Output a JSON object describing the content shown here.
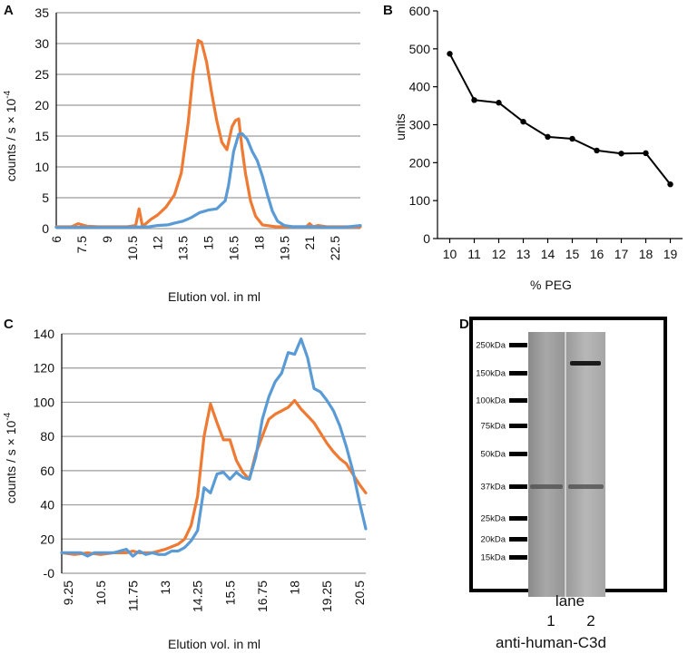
{
  "colors": {
    "orange": "#EE7A33",
    "blue": "#5B9BD5",
    "black": "#000000"
  },
  "chart_data": [
    {
      "panel": "A",
      "type": "line",
      "title": "",
      "xlabel": "Elution vol. in ml",
      "ylabel": "counts / s × 10",
      "ylabel_exponent": "-4",
      "xlim": [
        6,
        24
      ],
      "ylim": [
        0,
        35
      ],
      "x_ticks": [
        6,
        7.5,
        9,
        10.5,
        12,
        13.5,
        15,
        16.5,
        18,
        19.5,
        21,
        22.5
      ],
      "y_ticks": [
        0,
        5,
        10,
        15,
        20,
        25,
        30,
        35
      ],
      "grid": true,
      "series": [
        {
          "name": "orange",
          "color": "#EE7A33",
          "x": [
            6,
            6.9,
            7.3,
            7.8,
            8.5,
            9.5,
            10.2,
            10.7,
            10.9,
            11.1,
            11.3,
            11.6,
            12,
            12.5,
            13,
            13.4,
            13.8,
            14.1,
            14.4,
            14.6,
            14.9,
            15.2,
            15.5,
            15.8,
            16.1,
            16.4,
            16.6,
            16.8,
            17,
            17.2,
            17.5,
            17.8,
            18.2,
            19,
            20,
            20.8,
            21,
            21.2,
            21.5,
            22,
            23,
            24
          ],
          "y": [
            0.3,
            0.3,
            0.8,
            0.4,
            0.3,
            0.3,
            0.3,
            0.5,
            3.2,
            0.4,
            0.8,
            1.5,
            2.2,
            3.5,
            5.5,
            9,
            17,
            25,
            30.5,
            30.2,
            27,
            22,
            17.5,
            14,
            12.8,
            16.5,
            17.5,
            17.8,
            13,
            9,
            4.5,
            2,
            0.6,
            0.3,
            0.3,
            0.3,
            0.8,
            0.3,
            0.5,
            0.3,
            0.3,
            0.3
          ]
        },
        {
          "name": "blue",
          "color": "#5B9BD5",
          "x": [
            6,
            8,
            10,
            11.5,
            12,
            12.6,
            13,
            13.5,
            14,
            14.5,
            15,
            15.5,
            16,
            16.2,
            16.5,
            16.8,
            17,
            17.3,
            17.6,
            17.9,
            18.2,
            18.5,
            18.8,
            19.1,
            19.5,
            20,
            21,
            22,
            23,
            24
          ],
          "y": [
            0.2,
            0.2,
            0.2,
            0.3,
            0.5,
            0.6,
            0.9,
            1.2,
            1.8,
            2.6,
            3.0,
            3.2,
            4.5,
            7,
            12.5,
            15.3,
            15.4,
            14.5,
            12.5,
            11,
            8.5,
            5.5,
            2.8,
            1.2,
            0.5,
            0.3,
            0.3,
            0.2,
            0.2,
            0.5
          ]
        }
      ]
    },
    {
      "panel": "B",
      "type": "line",
      "title": "",
      "xlabel": "% PEG",
      "ylabel": "units",
      "xlim": [
        9.5,
        19.5
      ],
      "ylim": [
        0,
        600
      ],
      "x_ticks": [
        10,
        11,
        12,
        13,
        14,
        15,
        16,
        17,
        18,
        19
      ],
      "y_ticks": [
        0,
        100,
        200,
        300,
        400,
        500,
        600
      ],
      "grid": false,
      "series": [
        {
          "name": "units",
          "color": "#000000",
          "markers": true,
          "x": [
            10,
            11,
            12,
            13,
            14,
            15,
            16,
            17,
            18,
            19
          ],
          "y": [
            487,
            365,
            358,
            308,
            268,
            263,
            232,
            224,
            225,
            143
          ]
        }
      ]
    },
    {
      "panel": "C",
      "type": "line",
      "title": "",
      "xlabel": "Elution vol. in ml",
      "ylabel": "counts / s × 10",
      "ylabel_exponent": "-4",
      "xlim": [
        9,
        20.75
      ],
      "ylim": [
        0,
        140
      ],
      "x_ticks": [
        9.25,
        10.5,
        11.75,
        13,
        14.25,
        15.5,
        16.75,
        18,
        19.25,
        20.5
      ],
      "x_tick_labels": [
        "9.25",
        "10.5",
        "11.75",
        "13",
        "14.25",
        "15.5",
        "16.75",
        "18",
        "19.25",
        "20.5"
      ],
      "y_ticks": [
        0,
        20,
        40,
        60,
        80,
        100,
        120,
        140
      ],
      "y_tick_labels": [
        "-0",
        "20",
        "40",
        "60",
        "80",
        "100",
        "120",
        "140"
      ],
      "grid": true,
      "series": [
        {
          "name": "orange",
          "color": "#EE7A33",
          "x": [
            9,
            9.5,
            10,
            10.5,
            11,
            11.5,
            11.75,
            12,
            12.5,
            13,
            13.5,
            13.75,
            14,
            14.25,
            14.5,
            14.75,
            15,
            15.25,
            15.5,
            15.75,
            16,
            16.25,
            16.5,
            17,
            17.25,
            17.5,
            17.75,
            18,
            18.25,
            18.5,
            18.75,
            19,
            19.25,
            19.5,
            19.75,
            20,
            20.25,
            20.5,
            20.75
          ],
          "y": [
            12,
            11,
            12,
            11,
            12,
            12,
            13,
            12,
            12,
            14,
            17,
            20,
            28,
            45,
            80,
            99,
            88,
            78,
            78,
            66,
            59,
            55,
            70,
            90,
            93,
            95,
            97,
            101,
            96,
            92,
            88,
            82,
            76,
            71,
            67,
            64,
            58,
            52,
            47
          ]
        },
        {
          "name": "blue",
          "color": "#5B9BD5",
          "x": [
            9,
            9.25,
            9.5,
            9.75,
            10,
            10.25,
            10.5,
            10.75,
            11,
            11.25,
            11.5,
            11.75,
            12,
            12.25,
            12.5,
            12.75,
            13,
            13.25,
            13.5,
            13.75,
            14,
            14.25,
            14.5,
            14.75,
            15,
            15.25,
            15.5,
            15.75,
            16,
            16.25,
            16.5,
            16.75,
            17,
            17.25,
            17.5,
            17.75,
            18,
            18.25,
            18.5,
            18.75,
            19,
            19.25,
            19.5,
            19.75,
            20,
            20.25,
            20.5,
            20.75
          ],
          "y": [
            12,
            12,
            12,
            12,
            10,
            12,
            12,
            12,
            12,
            13,
            14,
            10,
            13,
            11,
            12,
            11,
            11,
            13,
            13,
            15,
            19,
            25,
            50,
            47,
            58,
            59,
            55,
            59,
            56,
            55,
            68,
            90,
            103,
            112,
            117,
            129,
            128,
            137,
            126,
            108,
            106,
            101,
            95,
            86,
            74,
            60,
            42,
            26
          ]
        }
      ]
    }
  ],
  "panels": {
    "a": "A",
    "b": "B",
    "c": "C",
    "d": "D"
  },
  "blot": {
    "markers": [
      "250kDa",
      "150kDa",
      "100kDa",
      "75kDa",
      "50kDa",
      "37kDa",
      "25kDa",
      "20kDa",
      "15kDa"
    ],
    "lane_title": "lane",
    "lanes": [
      "1",
      "2"
    ],
    "antibody": "anti-human-C3d"
  }
}
